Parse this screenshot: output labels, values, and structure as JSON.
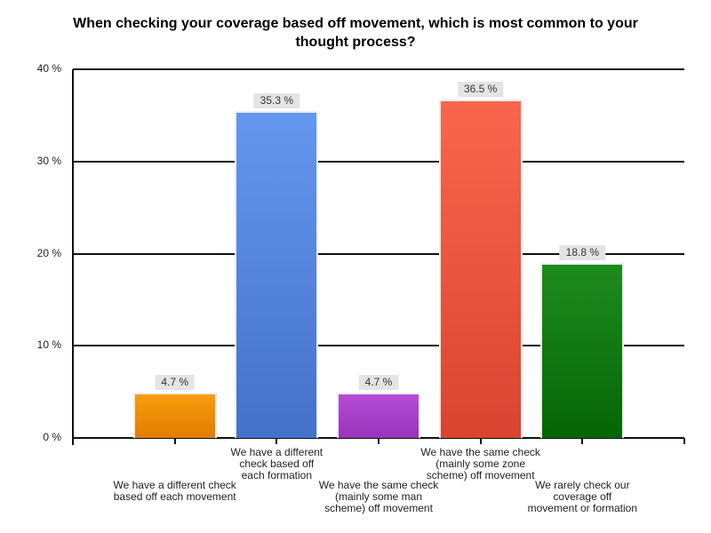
{
  "chart_data": {
    "type": "bar",
    "title": "When checking your coverage based off movement, which is most common to your thought process?",
    "title_lines": [
      "When checking your coverage based off movement, which is most common to your",
      "thought process?"
    ],
    "categories": [
      "We have a different check based off each movement",
      "We have a different check based off each formation",
      "We have the same check (mainly some man scheme) off movement",
      "We have the same check (mainly some zone scheme) off movement",
      "We rarely check our coverage off movement or formation"
    ],
    "category_lines": [
      [
        "We have a different check",
        "based off each movement"
      ],
      [
        "We have a different",
        "check based off",
        "each formation"
      ],
      [
        "We have the same check",
        "(mainly some man",
        "scheme) off movement"
      ],
      [
        "We have the same check",
        "(mainly some zone",
        "scheme) off movement"
      ],
      [
        "We rarely check our",
        "coverage off",
        "movement or formation"
      ]
    ],
    "values": [
      4.7,
      35.3,
      4.7,
      36.5,
      18.8
    ],
    "value_labels": [
      "4.7 %",
      "35.3 %",
      "4.7 %",
      "36.5 %",
      "18.8 %"
    ],
    "bar_gradients": [
      [
        "#f89d0e",
        "#e07c00"
      ],
      [
        "#6497ee",
        "#4471ca"
      ],
      [
        "#b44dd7",
        "#9933bb"
      ],
      [
        "#f9664d",
        "#d94430"
      ],
      [
        "#1e8b1e",
        "#056505"
      ]
    ],
    "y_ticks": [
      {
        "value": 0,
        "label": "0 %"
      },
      {
        "value": 10,
        "label": "10 %"
      },
      {
        "value": 20,
        "label": "20 %"
      },
      {
        "value": 30,
        "label": "30 %"
      },
      {
        "value": 40,
        "label": "40 %"
      }
    ],
    "ylim": [
      0,
      40
    ],
    "xlabel": "",
    "ylabel": "",
    "grid": true,
    "legend": "none",
    "value_label_bg": "#e4e4e4",
    "axis_color": "#111111",
    "background_color": "#ffffff"
  }
}
